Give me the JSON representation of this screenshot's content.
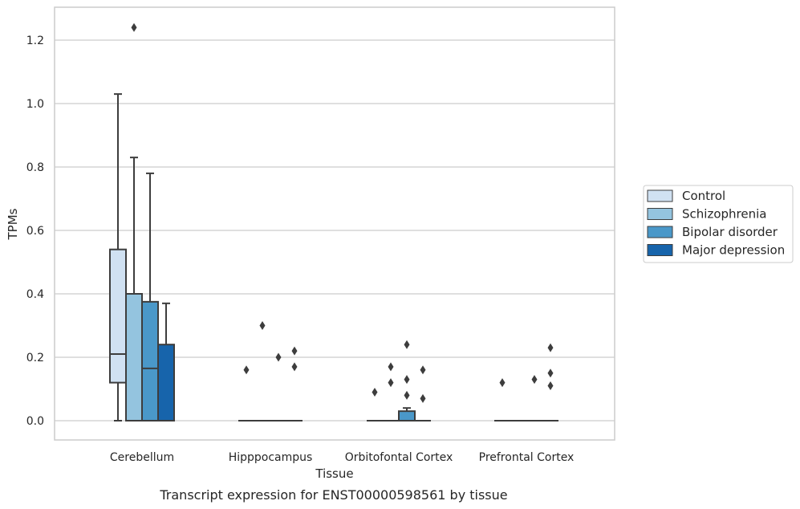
{
  "chart_data": {
    "type": "box",
    "title": "",
    "caption": "Transcript expression for ENST00000598561 by tissue",
    "xlabel": "Tissue",
    "ylabel": "TPMs",
    "ylim": [
      -0.06,
      1.3
    ],
    "yticks": [
      "0.0",
      "0.2",
      "0.4",
      "0.6",
      "0.8",
      "1.0",
      "1.2"
    ],
    "ytick_values": [
      0,
      0.2,
      0.4,
      0.6,
      0.8,
      1.0,
      1.2
    ],
    "grid": "horizontal",
    "legend_position": "right",
    "categories": [
      "Cerebellum",
      "Hipppocampus",
      "Orbitofontal Cortex",
      "Prefrontal Cortex"
    ],
    "series": [
      {
        "name": "Control",
        "color": "#d0e1f2",
        "boxes": [
          {
            "min": 0,
            "q1": 0.12,
            "median": 0.21,
            "q3": 0.54,
            "max": 1.03,
            "outliers": []
          },
          {
            "min": 0,
            "q1": 0,
            "median": 0,
            "q3": 0,
            "max": 0,
            "outliers": [
              0.16
            ]
          },
          {
            "min": 0,
            "q1": 0,
            "median": 0,
            "q3": 0,
            "max": 0,
            "outliers": [
              0.09
            ]
          },
          {
            "min": 0,
            "q1": 0,
            "median": 0,
            "q3": 0,
            "max": 0,
            "outliers": [
              0.12
            ]
          }
        ]
      },
      {
        "name": "Schizophrenia",
        "color": "#94c4df",
        "boxes": [
          {
            "min": 0,
            "q1": 0,
            "median": 0,
            "q3": 0.4,
            "max": 0.83,
            "outliers": [
              1.24
            ]
          },
          {
            "min": 0,
            "q1": 0,
            "median": 0,
            "q3": 0,
            "max": 0,
            "outliers": [
              0.3
            ]
          },
          {
            "min": 0,
            "q1": 0,
            "median": 0,
            "q3": 0,
            "max": 0,
            "outliers": [
              0.12,
              0.17
            ]
          },
          {
            "min": 0,
            "q1": 0,
            "median": 0,
            "q3": 0,
            "max": 0,
            "outliers": []
          }
        ]
      },
      {
        "name": "Bipolar disorder",
        "color": "#4a98c9",
        "boxes": [
          {
            "min": 0,
            "q1": 0,
            "median": 0.165,
            "q3": 0.375,
            "max": 0.78,
            "outliers": []
          },
          {
            "min": 0,
            "q1": 0,
            "median": 0,
            "q3": 0,
            "max": 0,
            "outliers": [
              0.2
            ]
          },
          {
            "min": 0,
            "q1": 0,
            "median": 0,
            "q3": 0.03,
            "max": 0.04,
            "outliers": [
              0.08,
              0.13,
              0.24
            ]
          },
          {
            "min": 0,
            "q1": 0,
            "median": 0,
            "q3": 0,
            "max": 0,
            "outliers": [
              0.13
            ]
          }
        ]
      },
      {
        "name": "Major depression",
        "color": "#1764ab",
        "boxes": [
          {
            "min": 0,
            "q1": 0,
            "median": 0,
            "q3": 0.24,
            "max": 0.37,
            "outliers": []
          },
          {
            "min": 0,
            "q1": 0,
            "median": 0,
            "q3": 0,
            "max": 0,
            "outliers": [
              0.17,
              0.22
            ]
          },
          {
            "min": 0,
            "q1": 0,
            "median": 0,
            "q3": 0,
            "max": 0,
            "outliers": [
              0.07,
              0.16
            ]
          },
          {
            "min": 0,
            "q1": 0,
            "median": 0,
            "q3": 0,
            "max": 0,
            "outliers": [
              0.11,
              0.15,
              0.23
            ]
          }
        ]
      }
    ],
    "colors": {
      "grid": "#cccccc",
      "frame": "#cccccc",
      "box_edge": "#3d3d3d",
      "outlier": "#3d3d3d"
    }
  }
}
